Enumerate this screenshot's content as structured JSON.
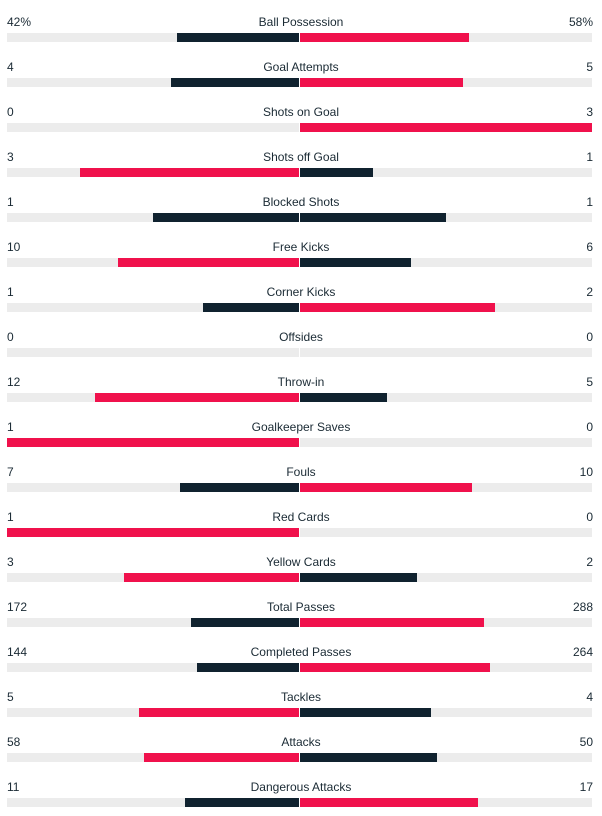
{
  "colors": {
    "higher": "#f0114c",
    "lower": "#10222f",
    "track": "#ececec"
  },
  "stats": [
    {
      "label": "Ball Possession",
      "home": "42%",
      "away": "58%",
      "home_share": 0.42,
      "away_share": 0.58
    },
    {
      "label": "Goal Attempts",
      "home": "4",
      "away": "5",
      "home_share": 0.44,
      "away_share": 0.56
    },
    {
      "label": "Shots on Goal",
      "home": "0",
      "away": "3",
      "home_share": 0.0,
      "away_share": 1.0
    },
    {
      "label": "Shots off Goal",
      "home": "3",
      "away": "1",
      "home_share": 0.75,
      "away_share": 0.25
    },
    {
      "label": "Blocked Shots",
      "home": "1",
      "away": "1",
      "home_share": 0.5,
      "away_share": 0.5
    },
    {
      "label": "Free Kicks",
      "home": "10",
      "away": "6",
      "home_share": 0.62,
      "away_share": 0.38
    },
    {
      "label": "Corner Kicks",
      "home": "1",
      "away": "2",
      "home_share": 0.33,
      "away_share": 0.67
    },
    {
      "label": "Offsides",
      "home": "0",
      "away": "0",
      "home_share": 0.0,
      "away_share": 0.0
    },
    {
      "label": "Throw-in",
      "home": "12",
      "away": "5",
      "home_share": 0.7,
      "away_share": 0.3
    },
    {
      "label": "Goalkeeper Saves",
      "home": "1",
      "away": "0",
      "home_share": 1.0,
      "away_share": 0.0
    },
    {
      "label": "Fouls",
      "home": "7",
      "away": "10",
      "home_share": 0.41,
      "away_share": 0.59
    },
    {
      "label": "Red Cards",
      "home": "1",
      "away": "0",
      "home_share": 1.0,
      "away_share": 0.0
    },
    {
      "label": "Yellow Cards",
      "home": "3",
      "away": "2",
      "home_share": 0.6,
      "away_share": 0.4
    },
    {
      "label": "Total Passes",
      "home": "172",
      "away": "288",
      "home_share": 0.37,
      "away_share": 0.63
    },
    {
      "label": "Completed Passes",
      "home": "144",
      "away": "264",
      "home_share": 0.35,
      "away_share": 0.65
    },
    {
      "label": "Tackles",
      "home": "5",
      "away": "4",
      "home_share": 0.55,
      "away_share": 0.45
    },
    {
      "label": "Attacks",
      "home": "58",
      "away": "50",
      "home_share": 0.53,
      "away_share": 0.47
    },
    {
      "label": "Dangerous Attacks",
      "home": "11",
      "away": "17",
      "home_share": 0.39,
      "away_share": 0.61
    }
  ]
}
